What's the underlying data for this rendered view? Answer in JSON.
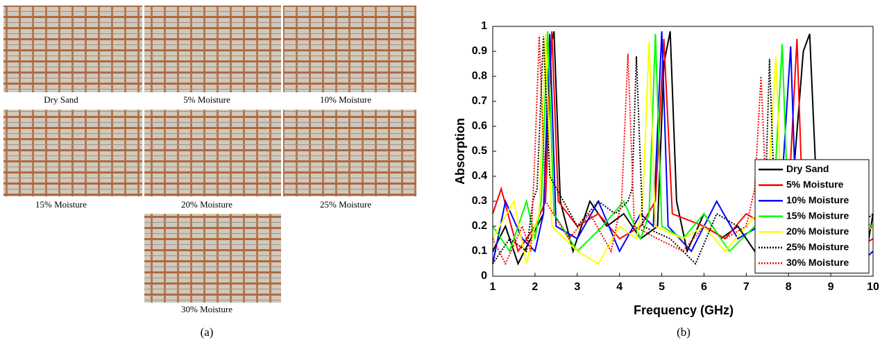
{
  "figure": {
    "photos": [
      {
        "caption": "Dry Sand"
      },
      {
        "caption": "5% Moisture"
      },
      {
        "caption": "10% Moisture"
      },
      {
        "caption": "15% Moisture"
      },
      {
        "caption": "20% Moisture"
      },
      {
        "caption": "25% Moisture"
      },
      {
        "caption": "30% Moisture"
      }
    ],
    "panel_labels": [
      "(a)",
      "(b)"
    ]
  },
  "chart_data": {
    "type": "line",
    "xlabel": "Frequency (GHz)",
    "ylabel": "Absorption",
    "xlim": [
      1,
      10
    ],
    "xticks": [
      1,
      2,
      3,
      4,
      5,
      6,
      7,
      8,
      9,
      10
    ],
    "ylim": [
      0,
      1
    ],
    "yticks": [
      0,
      0.1,
      0.2,
      0.3,
      0.4,
      0.5,
      0.6,
      0.7,
      0.8,
      0.9,
      1
    ],
    "legend": "right",
    "series": [
      {
        "name": "Dry Sand",
        "color": "#000000",
        "style": "solid",
        "x": [
          1,
          1.3,
          1.6,
          1.9,
          2.2,
          2.35,
          2.45,
          2.6,
          2.9,
          3.3,
          3.7,
          4.1,
          4.5,
          4.9,
          5.05,
          5.2,
          5.35,
          5.6,
          6,
          6.4,
          6.8,
          7.2,
          7.6,
          8,
          8.35,
          8.5,
          8.65,
          9,
          9.4,
          9.8,
          10
        ],
        "values": [
          0.1,
          0.2,
          0.05,
          0.15,
          0.25,
          0.9,
          0.98,
          0.3,
          0.1,
          0.3,
          0.2,
          0.25,
          0.15,
          0.2,
          0.85,
          0.98,
          0.3,
          0.1,
          0.25,
          0.15,
          0.2,
          0.1,
          0.2,
          0.15,
          0.9,
          0.97,
          0.4,
          0.02,
          0.1,
          0.05,
          0.25
        ]
      },
      {
        "name": "5% Moisture",
        "color": "#ff0000",
        "style": "solid",
        "x": [
          1,
          1.2,
          1.6,
          2,
          2.25,
          2.4,
          2.55,
          3,
          3.5,
          4,
          4.5,
          4.85,
          5.05,
          5.25,
          6,
          6.5,
          7,
          7.5,
          8,
          8.2,
          8.35,
          9,
          9.5,
          10
        ],
        "values": [
          0.25,
          0.35,
          0.1,
          0.2,
          0.3,
          0.98,
          0.3,
          0.2,
          0.25,
          0.15,
          0.2,
          0.3,
          0.95,
          0.25,
          0.2,
          0.15,
          0.25,
          0.2,
          0.3,
          0.95,
          0.2,
          0.05,
          0.1,
          0.15
        ]
      },
      {
        "name": "10% Moisture",
        "color": "#0000ff",
        "style": "solid",
        "x": [
          1,
          1.3,
          1.7,
          2,
          2.2,
          2.35,
          2.5,
          3,
          3.5,
          4,
          4.5,
          4.8,
          5,
          5.15,
          5.7,
          6.3,
          6.8,
          7.3,
          7.8,
          8.05,
          8.2,
          8.8,
          9.5,
          10
        ],
        "values": [
          0.05,
          0.3,
          0.15,
          0.1,
          0.25,
          0.97,
          0.2,
          0.15,
          0.3,
          0.1,
          0.25,
          0.2,
          0.98,
          0.2,
          0.1,
          0.3,
          0.15,
          0.2,
          0.25,
          0.92,
          0.15,
          0.1,
          0.02,
          0.1
        ]
      },
      {
        "name": "15% Moisture",
        "color": "#00ff00",
        "style": "solid",
        "x": [
          1,
          1.4,
          1.8,
          2,
          2.15,
          2.3,
          2.45,
          3,
          3.6,
          4.1,
          4.5,
          4.7,
          4.85,
          5,
          5.5,
          6,
          6.6,
          7.2,
          7.6,
          7.85,
          8,
          8.6,
          9.3,
          10
        ],
        "values": [
          0.2,
          0.1,
          0.3,
          0.15,
          0.3,
          0.98,
          0.25,
          0.1,
          0.2,
          0.3,
          0.15,
          0.25,
          0.97,
          0.2,
          0.15,
          0.25,
          0.1,
          0.2,
          0.15,
          0.93,
          0.2,
          0.15,
          0.25,
          0.2
        ]
      },
      {
        "name": "20% Moisture",
        "color": "#ffff00",
        "style": "solid",
        "x": [
          1,
          1.5,
          1.8,
          2,
          2.1,
          2.25,
          2.4,
          3,
          3.5,
          4,
          4.4,
          4.55,
          4.7,
          4.85,
          5.5,
          6,
          6.5,
          7,
          7.5,
          7.7,
          7.85,
          8.5,
          9.2,
          10
        ],
        "values": [
          0.15,
          0.3,
          0.05,
          0.2,
          0.25,
          0.97,
          0.2,
          0.1,
          0.05,
          0.2,
          0.15,
          0.3,
          0.94,
          0.2,
          0.15,
          0.2,
          0.1,
          0.2,
          0.3,
          0.88,
          0.2,
          0.15,
          0.1,
          0.2
        ]
      },
      {
        "name": "25% Moisture",
        "color": "#000000",
        "style": "dotted",
        "x": [
          1,
          1.4,
          1.8,
          1.95,
          2.05,
          2.2,
          2.35,
          3,
          3.5,
          3.9,
          4.2,
          4.3,
          4.4,
          4.55,
          5.2,
          5.8,
          6.3,
          6.8,
          7.2,
          7.45,
          7.55,
          7.7,
          8.3,
          9,
          10
        ],
        "values": [
          0.05,
          0.15,
          0.1,
          0.3,
          0.35,
          0.96,
          0.4,
          0.2,
          0.3,
          0.25,
          0.3,
          0.35,
          0.88,
          0.2,
          0.15,
          0.05,
          0.25,
          0.2,
          0.1,
          0.3,
          0.87,
          0.15,
          0.2,
          0.1,
          0.25
        ]
      },
      {
        "name": "30% Moisture",
        "color": "#ff0000",
        "style": "dotted",
        "x": [
          1,
          1.3,
          1.7,
          1.9,
          2,
          2.1,
          2.25,
          2.8,
          3.3,
          3.8,
          4.05,
          4.2,
          4.35,
          4.9,
          5.5,
          6,
          6.5,
          7,
          7.2,
          7.35,
          7.5,
          8.2,
          9,
          10
        ],
        "values": [
          0.15,
          0.05,
          0.2,
          0.1,
          0.5,
          0.96,
          0.3,
          0.15,
          0.25,
          0.1,
          0.3,
          0.89,
          0.2,
          0.15,
          0.1,
          0.2,
          0.15,
          0.2,
          0.35,
          0.8,
          0.2,
          0.15,
          0.1,
          0.2
        ]
      }
    ]
  }
}
